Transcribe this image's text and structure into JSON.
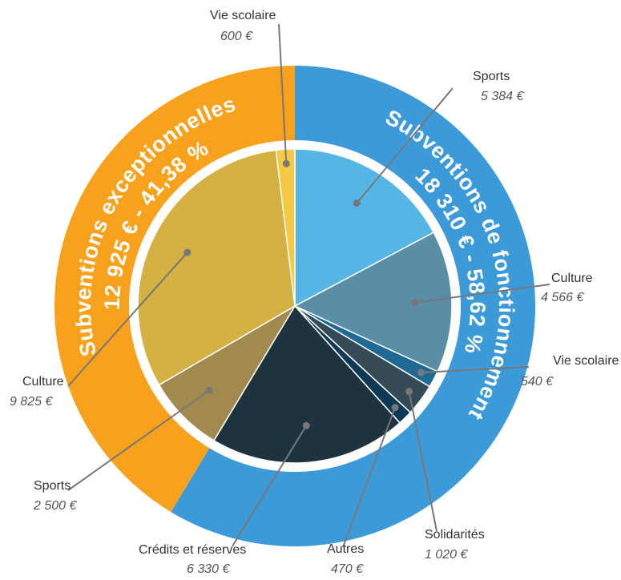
{
  "chart_data": {
    "type": "donut",
    "rings": [
      {
        "categories": [
          "Subventions de fonctionnement",
          "Subventions exceptionnelles"
        ],
        "values": [
          18310,
          12925
        ],
        "value_labels": [
          "18 310 € - 58,62 %",
          "12 925 € - 41,38 %"
        ],
        "colors": [
          "#3d9ad8",
          "#f7a11d"
        ]
      },
      {
        "categories": [
          "Sports",
          "Culture",
          "Vie scolaire",
          "Solidarités",
          "Autres",
          "Crédits et réserves",
          "Sports",
          "Culture",
          "Vie scolaire"
        ],
        "values": [
          5384,
          4566,
          540,
          1020,
          470,
          6330,
          2500,
          9825,
          600
        ],
        "value_labels": [
          "5 384 €",
          "4 566 €",
          "540 €",
          "1 020 €",
          "470 €",
          "6 330 €",
          "2 500 €",
          "9 825 €",
          "600 €"
        ],
        "colors": [
          "#55b6e6",
          "#5a8ea7",
          "#1f6a95",
          "#344a57",
          "#0e3a56",
          "#1d3340",
          "#a28a4f",
          "#d4b142",
          "#f6c944"
        ]
      }
    ]
  }
}
